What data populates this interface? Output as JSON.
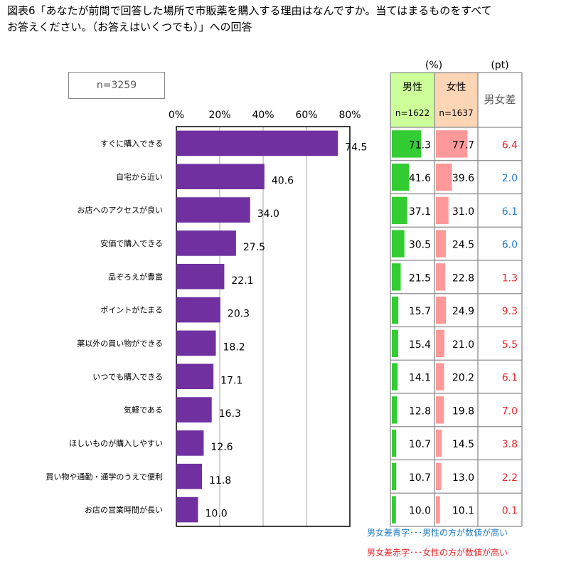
{
  "title": "図表6「あなたが前間で回答した場所で市販薬を購入する理由はなんですか。当てはまるものをすべて\nお答えください。（お答えはいくつでも）」への回答",
  "sample_label": "n=3259",
  "unit_pct": "(%)",
  "unit_pt": "(pt)",
  "table_headers": {
    "male": "男性",
    "male_n": "n=1622",
    "female": "女性",
    "female_n": "n=1637",
    "diff": "男女差"
  },
  "legend": {
    "blue": "男女差青字･･･男性の方が数値が高い",
    "red": "男女差赤字･･･女性の方が数値が高い"
  },
  "colors": {
    "bar": "#7030a0",
    "male_bar": "#33cc33",
    "female_bar": "#ff9999",
    "male_header_bg": "#ccff99",
    "female_header_bg": "#fcd5b4",
    "diff_blue": "#1f7cc6",
    "diff_red": "#e8262a",
    "grid": "#a6a6a6"
  },
  "chart_data": {
    "type": "bar",
    "orientation": "horizontal",
    "xlim": [
      0,
      80
    ],
    "x_ticks": [
      "0%",
      "20%",
      "40%",
      "60%",
      "80%"
    ],
    "categories": [
      "すぐに購入できる",
      "自宅から近い",
      "お店へのアクセスが良い",
      "安価で購入できる",
      "品ぞろえが豊富",
      "ポイントがたまる",
      "薬以外の買い物ができる",
      "いつでも購入できる",
      "気軽である",
      "ほしいものが購入しやすい",
      "買い物や通勤・通学のうえで便利",
      "お店の営業時間が長い"
    ],
    "values": [
      74.5,
      40.6,
      34.0,
      27.5,
      22.1,
      20.3,
      18.2,
      17.1,
      16.3,
      12.6,
      11.8,
      10.0
    ],
    "value_labels": [
      "74.5",
      "40.6",
      "34.0",
      "27.5",
      "22.1",
      "20.3",
      "18.2",
      "17.1",
      "16.3",
      "12.6",
      "11.8",
      "10.0"
    ],
    "male": [
      "71.3",
      "41.6",
      "37.1",
      "30.5",
      "21.5",
      "15.7",
      "15.4",
      "14.1",
      "12.8",
      "10.7",
      "10.7",
      "10.0"
    ],
    "female": [
      "77.7",
      "39.6",
      "31.0",
      "24.5",
      "22.8",
      "24.9",
      "21.0",
      "20.2",
      "19.8",
      "14.5",
      "13.0",
      "10.1"
    ],
    "diff": [
      "6.4",
      "2.0",
      "6.1",
      "6.0",
      "1.3",
      "9.3",
      "5.5",
      "6.1",
      "7.0",
      "3.8",
      "2.2",
      "0.1"
    ],
    "diff_sign": [
      "female",
      "male",
      "male",
      "male",
      "female",
      "female",
      "female",
      "female",
      "female",
      "female",
      "female",
      "female"
    ]
  }
}
